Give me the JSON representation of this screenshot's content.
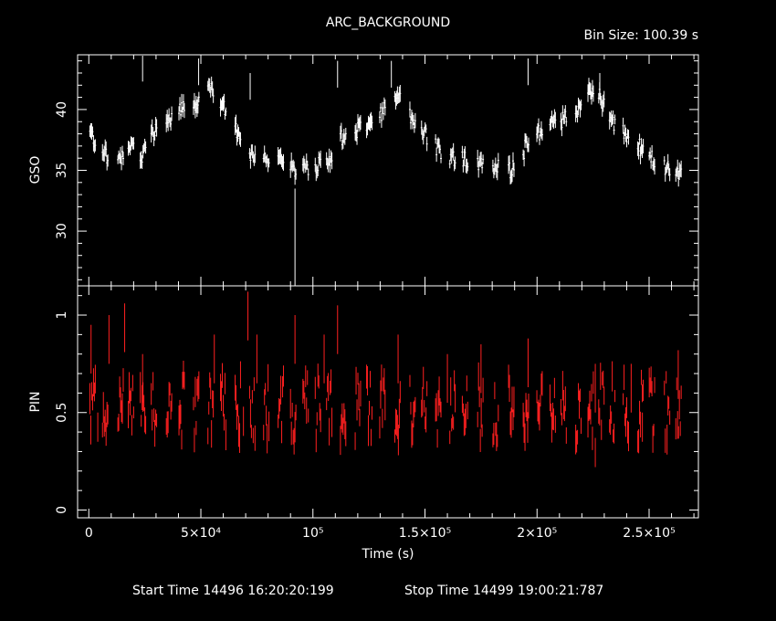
{
  "title": "ARC_BACKGROUND",
  "bin_size": "Bin Size: 100.39 s",
  "xlabel": "Time (s)",
  "start_time": "Start Time 14496 16:20:20:199",
  "stop_time": "Stop Time 14499 19:00:21:787",
  "colors": {
    "gso": "#ffffff",
    "pin": "#ff2020",
    "axis": "#ffffff",
    "background": "#000000"
  },
  "chart_data": [
    {
      "type": "scatter",
      "name": "GSO",
      "ylabel": "GSO",
      "xlim": [
        -5000,
        272000
      ],
      "ylim": [
        25.5,
        44.5
      ],
      "x_ticks": [
        0,
        50000,
        100000,
        150000,
        200000,
        250000
      ],
      "x_tick_labels": [
        "0",
        "5×10⁴",
        "10⁵",
        "1.5×10⁵",
        "2×10⁵",
        "2.5×10⁵"
      ],
      "y_ticks": [
        30,
        35,
        40
      ],
      "y_tick_labels": [
        "30",
        "35",
        "40"
      ],
      "anchors_x": [
        1000,
        4000,
        8000,
        12000,
        16000,
        20000,
        23000,
        26000,
        30000,
        34000,
        38000,
        42000,
        46000,
        50000,
        52000,
        54000,
        56000,
        60000,
        64000,
        68000,
        72000,
        76000,
        80000,
        84000,
        88000,
        92000,
        96000,
        100000,
        104000,
        108000,
        112000,
        116000,
        120000,
        124000,
        128000,
        132000,
        135000,
        138000,
        141000,
        144000,
        148000,
        152000,
        156000,
        160000,
        164000,
        168000,
        172000,
        176000,
        180000,
        184000,
        188000,
        192000,
        196000,
        200000,
        204000,
        208000,
        212000,
        216000,
        220000,
        224000,
        228000,
        232000,
        236000,
        240000,
        244000,
        248000,
        252000,
        256000,
        260000,
        264000,
        267000
      ],
      "anchors_y": [
        38,
        37,
        36.2,
        35.8,
        36.5,
        36.8,
        35.5,
        37.5,
        38.5,
        39,
        39.5,
        40,
        39.8,
        41,
        42.5,
        42.2,
        41.5,
        40.5,
        39,
        37.5,
        36.5,
        36.2,
        36,
        36.5,
        35.5,
        34.8,
        35.2,
        35.5,
        35.5,
        36,
        37.5,
        37.8,
        38.2,
        38.5,
        39,
        40,
        41.5,
        41,
        40.5,
        39.5,
        38.5,
        37.5,
        36.8,
        36.3,
        36,
        35.8,
        35.6,
        35.5,
        35.2,
        35.3,
        35,
        35.5,
        37.5,
        38,
        38.5,
        39,
        39.3,
        39.5,
        40.5,
        41.5,
        41,
        39.5,
        38.5,
        37.8,
        37.2,
        36.5,
        36,
        35.5,
        35,
        34.5,
        34.5
      ],
      "bin_size_s": 100.39,
      "dropout_x": 92000,
      "dropout_min": 25.5,
      "spikes": [
        [
          24000,
          44.5
        ],
        [
          49000,
          44.2
        ],
        [
          72000,
          43
        ],
        [
          111000,
          44
        ],
        [
          135000,
          44
        ],
        [
          196000,
          44.2
        ],
        [
          228000,
          43
        ]
      ]
    },
    {
      "type": "scatter",
      "name": "PIN",
      "ylabel": "PIN",
      "xlim": [
        -5000,
        272000
      ],
      "ylim": [
        -0.04,
        1.15
      ],
      "x_ticks": [
        0,
        50000,
        100000,
        150000,
        200000,
        250000
      ],
      "y_ticks": [
        0,
        0.5,
        1
      ],
      "y_tick_labels": [
        "0",
        "0.5",
        "1"
      ],
      "typical_value": 0.5,
      "scatter_range": [
        0.35,
        0.7
      ],
      "spikes": [
        [
          1000,
          0.95
        ],
        [
          9000,
          1.0
        ],
        [
          16000,
          1.06
        ],
        [
          24000,
          0.8
        ],
        [
          56000,
          0.9
        ],
        [
          71000,
          1.12
        ],
        [
          75000,
          0.9
        ],
        [
          92000,
          1.0
        ],
        [
          105000,
          0.9
        ],
        [
          111000,
          1.05
        ],
        [
          138000,
          0.9
        ],
        [
          160000,
          0.8
        ],
        [
          175000,
          0.85
        ],
        [
          196000,
          0.88
        ],
        [
          226000,
          0.75
        ],
        [
          242000,
          0.75
        ],
        [
          263000,
          0.82
        ]
      ],
      "dips": [
        [
          4000,
          0.35
        ],
        [
          69000,
          0.38
        ],
        [
          226000,
          0.22
        ],
        [
          247000,
          0.35
        ]
      ]
    }
  ]
}
